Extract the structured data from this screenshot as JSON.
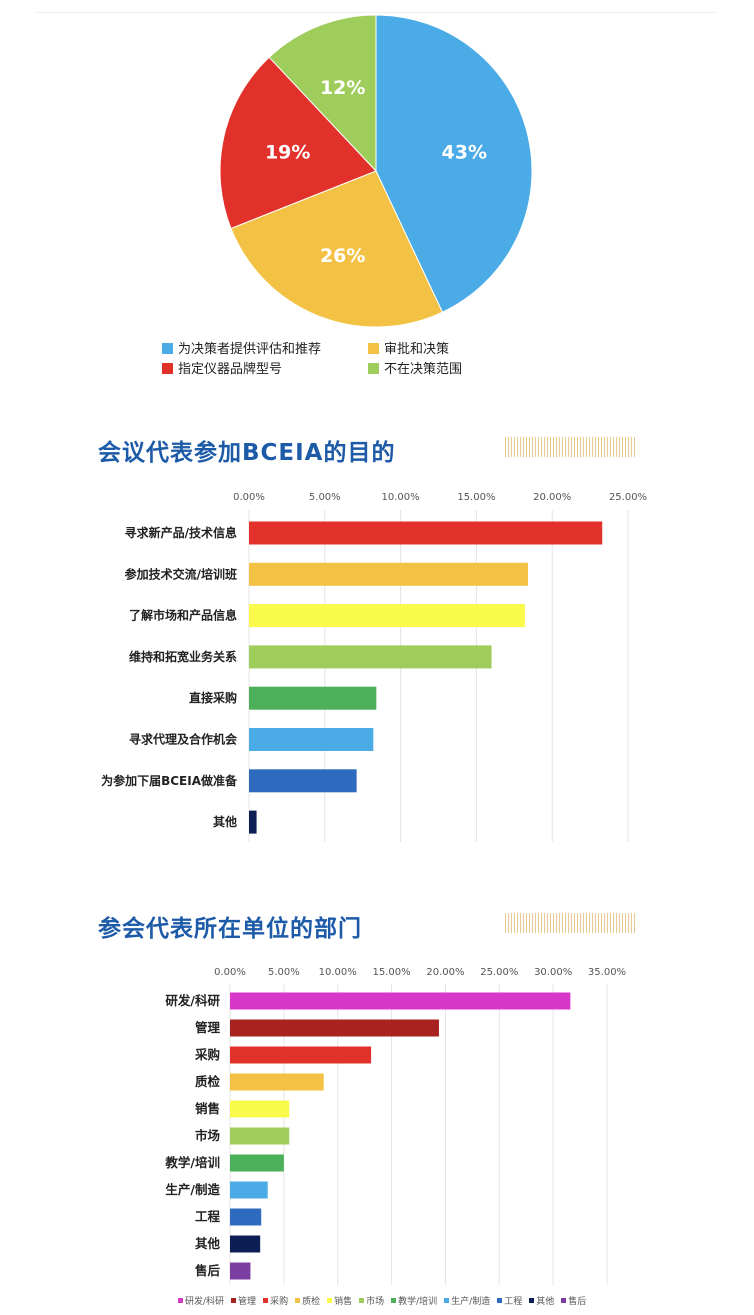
{
  "chart_data": [
    {
      "type": "pie",
      "labels": [
        "为决策者提供评估和推荐",
        "审批和决策",
        "指定仪器品牌型号",
        "不在决策范围"
      ],
      "values": [
        43,
        26,
        19,
        12
      ],
      "value_labels": [
        "43%",
        "26%",
        "19%",
        "12%"
      ],
      "colors": [
        "#4aabe6",
        "#f3c244",
        "#e2302a",
        "#9fcd5b"
      ],
      "legend_placement": "bottom"
    },
    {
      "type": "bar",
      "orientation": "horizontal",
      "title": "会议代表参加BCEIA的目的",
      "categories": [
        "寻求新产品/技术信息",
        "参加技术交流/培训班",
        "了解市场和产品信息",
        "维持和拓宽业务关系",
        "直接采购",
        "寻求代理及合作机会",
        "为参加下届BCEIA做准备",
        "其他"
      ],
      "values": [
        23.3,
        18.4,
        18.2,
        16.0,
        8.4,
        8.2,
        7.1,
        0.5
      ],
      "colors": [
        "#e2302a",
        "#f3c244",
        "#fafa4a",
        "#9fcd5b",
        "#4caf5a",
        "#4aabe6",
        "#2e6bbf",
        "#0d1e55"
      ],
      "xlim": [
        0,
        25
      ],
      "xticks": [
        "0.00%",
        "5.00%",
        "10.00%",
        "15.00%",
        "20.00%",
        "25.00%"
      ],
      "grid": true
    },
    {
      "type": "bar",
      "orientation": "horizontal",
      "title": "参会代表所在单位的部门",
      "categories": [
        "研发/科研",
        "管理",
        "采购",
        "质检",
        "销售",
        "市场",
        "教学/培训",
        "生产/制造",
        "工程",
        "其他",
        "售后"
      ],
      "values": [
        31.6,
        19.4,
        13.1,
        8.7,
        5.5,
        5.5,
        5.0,
        3.5,
        2.9,
        2.8,
        1.9
      ],
      "colors": [
        "#d838c8",
        "#a8231f",
        "#e2302a",
        "#f3c244",
        "#fafa4a",
        "#9fcd5b",
        "#4caf5a",
        "#4aabe6",
        "#2e6bbf",
        "#0d1e55",
        "#7a3fa0"
      ],
      "xlim": [
        0,
        35
      ],
      "xticks": [
        "0.00%",
        "5.00%",
        "10.00%",
        "15.00%",
        "20.00%",
        "25.00%",
        "30.00%",
        "35.00%"
      ],
      "grid": true,
      "legend": [
        "研发/科研",
        "管理",
        "采购",
        "质检",
        "销售",
        "市场",
        "教学/培训",
        "生产/制造",
        "工程",
        "其他",
        "售后"
      ],
      "legend_placement": "bottom"
    }
  ]
}
